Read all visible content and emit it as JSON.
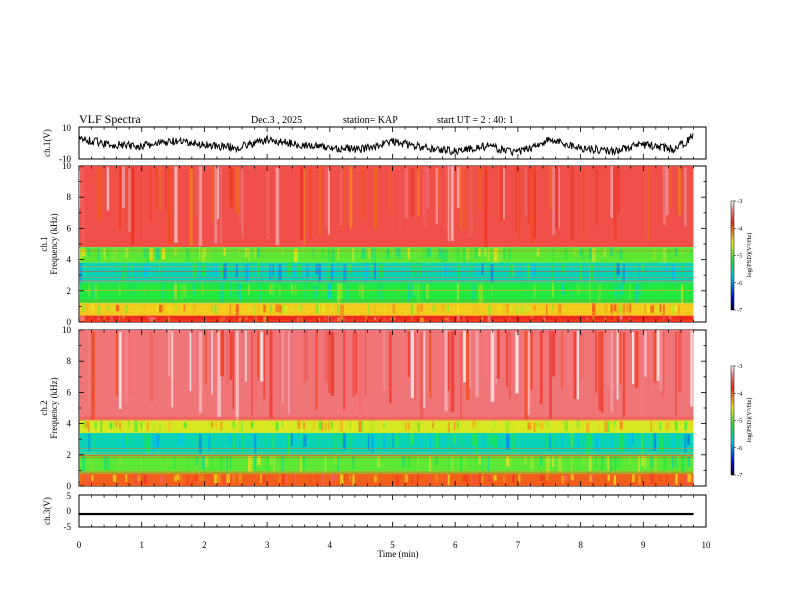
{
  "header": {
    "title": "VLF Spectra",
    "date": "Dec.3  , 2025",
    "station": "station= KAP",
    "start": "start  UT  =   2 : 40: 1"
  },
  "colors": {
    "trace": "#000000",
    "red": "#ee2a1c",
    "yellow": "#f2e020",
    "green": "#22e84a",
    "cyan": "#22e4e8",
    "blue": "#0a18d8",
    "navy": "#000044"
  },
  "chart_data": [
    {
      "type": "line",
      "name": "ch1-waveform",
      "ylabel": "ch.1(V)",
      "ylim": [
        -10,
        10
      ],
      "y_tick_labels": [
        "10",
        "-10"
      ],
      "x": [
        0,
        0.5,
        1,
        1.5,
        2,
        2.5,
        3,
        3.5,
        4,
        4.5,
        5,
        5.5,
        6,
        6.5,
        7,
        7.5,
        8,
        8.5,
        9,
        9.5,
        9.8
      ],
      "y": [
        3,
        -1,
        -2,
        1,
        -1,
        -3,
        2,
        -1,
        -3,
        -4,
        1,
        -3,
        -5,
        -2,
        -6,
        2,
        -3,
        -5,
        -1,
        -4,
        4
      ]
    },
    {
      "type": "heatmap",
      "name": "ch1-spectrogram",
      "ylabel": "ch.1\nFrequency (kHz)",
      "ylim": [
        0,
        10
      ],
      "y_ticks": [
        0,
        2,
        4,
        6,
        8,
        10
      ],
      "bands_khz": [
        {
          "from": 4.8,
          "to": 10,
          "level": -3.6
        },
        {
          "from": 3.8,
          "to": 4.8,
          "level": -5.0
        },
        {
          "from": 2.5,
          "to": 3.8,
          "level": -5.6
        },
        {
          "from": 1.2,
          "to": 2.5,
          "level": -5.2
        },
        {
          "from": 0.4,
          "to": 1.2,
          "level": -4.4
        },
        {
          "from": 0,
          "to": 0.4,
          "level": -3.8
        }
      ],
      "colorbar": {
        "label": "log(PSD)(V²/Hz)",
        "range": [
          -7,
          -3
        ],
        "ticks": [
          -3,
          -4,
          -5,
          -6,
          -7
        ]
      }
    },
    {
      "type": "heatmap",
      "name": "ch2-spectrogram",
      "ylabel": "ch.2\nFrequency (kHz)",
      "ylim": [
        0,
        10
      ],
      "y_ticks": [
        0,
        2,
        4,
        6,
        8,
        10
      ],
      "bands_khz": [
        {
          "from": 4.2,
          "to": 10,
          "level": -3.4
        },
        {
          "from": 3.4,
          "to": 4.2,
          "level": -4.6
        },
        {
          "from": 2.0,
          "to": 3.4,
          "level": -5.6
        },
        {
          "from": 0.8,
          "to": 2.0,
          "level": -5.0
        },
        {
          "from": 0,
          "to": 0.8,
          "level": -4.0
        }
      ],
      "colorbar": {
        "label": "log(PSD)(V²/Hz)",
        "range": [
          -7,
          -3
        ],
        "ticks": [
          -3,
          -4,
          -5,
          -6,
          -7
        ]
      }
    },
    {
      "type": "line",
      "name": "ch3-waveform",
      "ylabel": "ch.3(V)",
      "ylim": [
        -5,
        5
      ],
      "y_tick_labels": [
        "5",
        "0",
        "-5"
      ],
      "x": [
        0,
        9.8
      ],
      "y_band": [
        -1.3,
        -0.6
      ]
    }
  ],
  "x_axis": {
    "label": "Time (min)",
    "range": [
      0,
      10
    ],
    "ticks": [
      "0",
      "1",
      "2",
      "3",
      "4",
      "5",
      "6",
      "7",
      "8",
      "9",
      "10"
    ]
  }
}
